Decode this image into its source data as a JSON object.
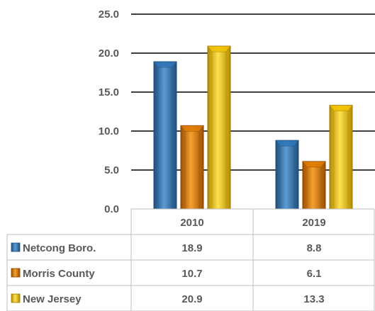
{
  "chart_data": {
    "type": "bar",
    "categories": [
      "2010",
      "2019"
    ],
    "series": [
      {
        "name": "Netcong Boro.",
        "values": [
          18.9,
          8.8
        ],
        "color": "#2e75b6"
      },
      {
        "name": "Morris County",
        "values": [
          10.7,
          6.1
        ],
        "color": "#e07b00"
      },
      {
        "name": "New Jersey",
        "values": [
          20.9,
          13.3
        ],
        "color": "#f2c200"
      }
    ],
    "yticks": [
      "0.0",
      "5.0",
      "10.0",
      "15.0",
      "20.0",
      "25.0"
    ],
    "ylim": [
      0,
      25
    ],
    "grid": true,
    "legend": "data-table",
    "data_table": [
      [
        "18.9",
        "8.8"
      ],
      [
        "10.7",
        "6.1"
      ],
      [
        "20.9",
        "13.3"
      ]
    ]
  }
}
